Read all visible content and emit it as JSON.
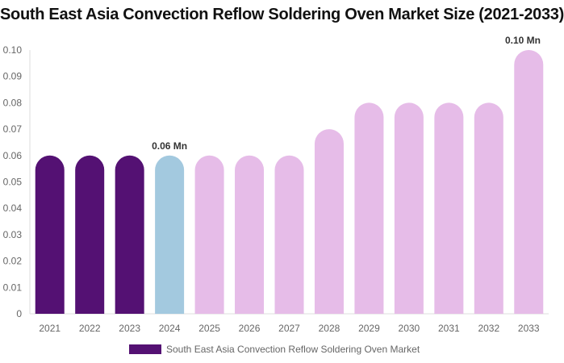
{
  "chart_data": {
    "type": "bar",
    "title": "South East Asia Convection Reflow Soldering Oven Market Size (2021-2033)",
    "categories": [
      "2021",
      "2022",
      "2023",
      "2024",
      "2025",
      "2026",
      "2027",
      "2028",
      "2029",
      "2030",
      "2031",
      "2032",
      "2033"
    ],
    "series": [
      {
        "name": "South East Asia Convection Reflow Soldering Oven Market",
        "values": [
          0.06,
          0.06,
          0.06,
          0.06,
          0.06,
          0.06,
          0.06,
          0.07,
          0.08,
          0.08,
          0.08,
          0.08,
          0.1
        ]
      }
    ],
    "colors": [
      "#541173",
      "#541173",
      "#541173",
      "#a3c9df",
      "#e6bce8",
      "#e6bce8",
      "#e6bce8",
      "#e6bce8",
      "#e6bce8",
      "#e6bce8",
      "#e6bce8",
      "#e6bce8",
      "#e6bce8"
    ],
    "data_labels": [
      {
        "index": 3,
        "text": "0.06 Mn"
      },
      {
        "index": 12,
        "text": "0.10 Mn"
      }
    ],
    "ylim": [
      0,
      0.1
    ],
    "yticks": [
      "0",
      "0.01",
      "0.02",
      "0.03",
      "0.04",
      "0.05",
      "0.06",
      "0.07",
      "0.08",
      "0.09",
      "0.10"
    ],
    "grid": false,
    "legend": "bottom",
    "xlabel": "",
    "ylabel": ""
  }
}
